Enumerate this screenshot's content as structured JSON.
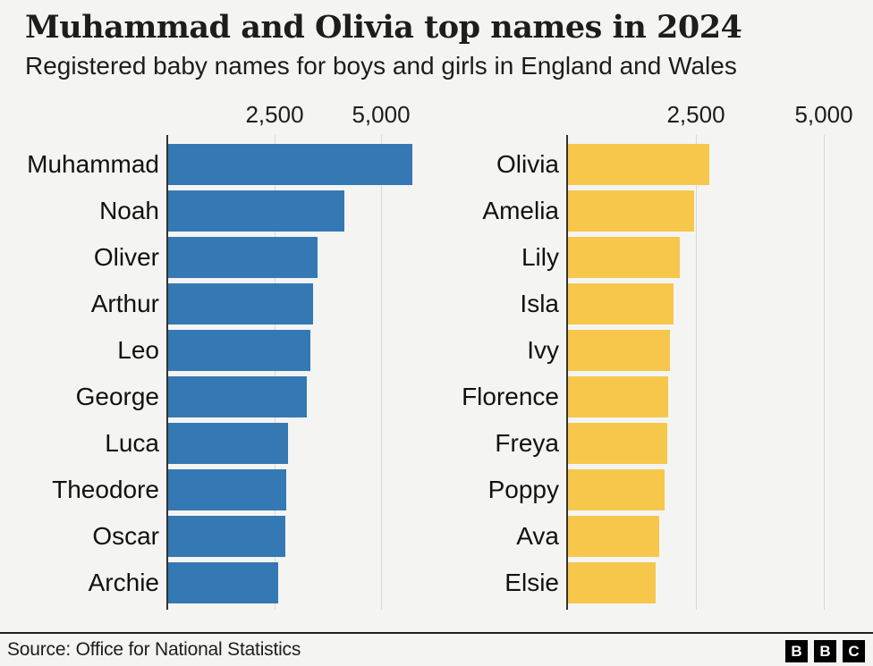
{
  "header": {
    "title": "Muhammad and Olivia top names in 2024",
    "subtitle": "Registered baby names for boys and girls in England and Wales"
  },
  "footer": {
    "source": "Source: Office for National Statistics",
    "logo_letters": [
      "B",
      "B",
      "C"
    ]
  },
  "colors": {
    "background": "#f4f4f2",
    "text": "#1d1d1b",
    "boys_bar": "#3478b4",
    "girls_bar": "#f6c74b",
    "gridline": "#d9d9d6",
    "axis_line": "#35332f",
    "divider": "#1d1d1b"
  },
  "chart_data": [
    {
      "type": "bar",
      "orientation": "horizontal",
      "group": "boys",
      "categories": [
        "Muhammad",
        "Noah",
        "Oliver",
        "Arthur",
        "Leo",
        "George",
        "Luca",
        "Theodore",
        "Oscar",
        "Archie"
      ],
      "values": [
        5720,
        4140,
        3500,
        3390,
        3340,
        3250,
        2820,
        2770,
        2750,
        2580
      ],
      "xticks": [
        2500,
        5000
      ],
      "xtick_labels": [
        "2,500",
        "5,000"
      ],
      "xlim": [
        0,
        6000
      ],
      "grid": true,
      "legend": "none",
      "bar_color": "#3478b4"
    },
    {
      "type": "bar",
      "orientation": "horizontal",
      "group": "girls",
      "categories": [
        "Olivia",
        "Amelia",
        "Lily",
        "Isla",
        "Ivy",
        "Florence",
        "Freya",
        "Poppy",
        "Ava",
        "Elsie"
      ],
      "values": [
        2760,
        2460,
        2190,
        2060,
        2000,
        1960,
        1940,
        1890,
        1780,
        1710
      ],
      "xticks": [
        2500,
        5000
      ],
      "xtick_labels": [
        "2,500",
        "5,000"
      ],
      "xlim": [
        0,
        5680
      ],
      "grid": true,
      "legend": "none",
      "bar_color": "#f6c74b"
    }
  ]
}
